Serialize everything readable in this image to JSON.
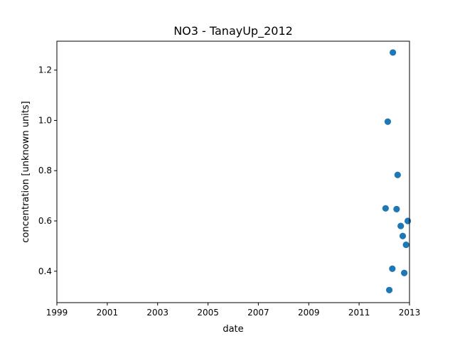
{
  "chart_data": {
    "type": "scatter",
    "title": "NO3 - TanayUp_2012",
    "xlabel": "date",
    "ylabel": "concentration [unknown units]",
    "x_axis_type": "date",
    "xlim": [
      "1999-01-01",
      "2013-01-01"
    ],
    "ylim": [
      0.275,
      1.315
    ],
    "xticks": [
      {
        "label": "1999",
        "value": "1999-01-01"
      },
      {
        "label": "2001",
        "value": "2001-01-01"
      },
      {
        "label": "2003",
        "value": "2003-01-01"
      },
      {
        "label": "2005",
        "value": "2005-01-01"
      },
      {
        "label": "2007",
        "value": "2007-01-01"
      },
      {
        "label": "2009",
        "value": "2009-01-01"
      },
      {
        "label": "2011",
        "value": "2011-01-01"
      },
      {
        "label": "2013",
        "value": "2013-01-01"
      }
    ],
    "yticks": [
      {
        "label": "0.4",
        "value": 0.4
      },
      {
        "label": "0.6",
        "value": 0.6
      },
      {
        "label": "0.8",
        "value": 0.8
      },
      {
        "label": "1.0",
        "value": 1.0
      },
      {
        "label": "1.2",
        "value": 1.2
      }
    ],
    "grid": false,
    "marker_color": "#1f77b4",
    "points": [
      {
        "x": "2012-01-20",
        "y": 0.65
      },
      {
        "x": "2012-02-21",
        "y": 0.995
      },
      {
        "x": "2012-03-14",
        "y": 0.325
      },
      {
        "x": "2012-04-27",
        "y": 0.41
      },
      {
        "x": "2012-05-05",
        "y": 1.27
      },
      {
        "x": "2012-06-28",
        "y": 0.647
      },
      {
        "x": "2012-07-13",
        "y": 0.783
      },
      {
        "x": "2012-08-27",
        "y": 0.58
      },
      {
        "x": "2012-09-25",
        "y": 0.54
      },
      {
        "x": "2012-10-17",
        "y": 0.393
      },
      {
        "x": "2012-11-12",
        "y": 0.505
      },
      {
        "x": "2012-12-07",
        "y": 0.6
      }
    ]
  }
}
